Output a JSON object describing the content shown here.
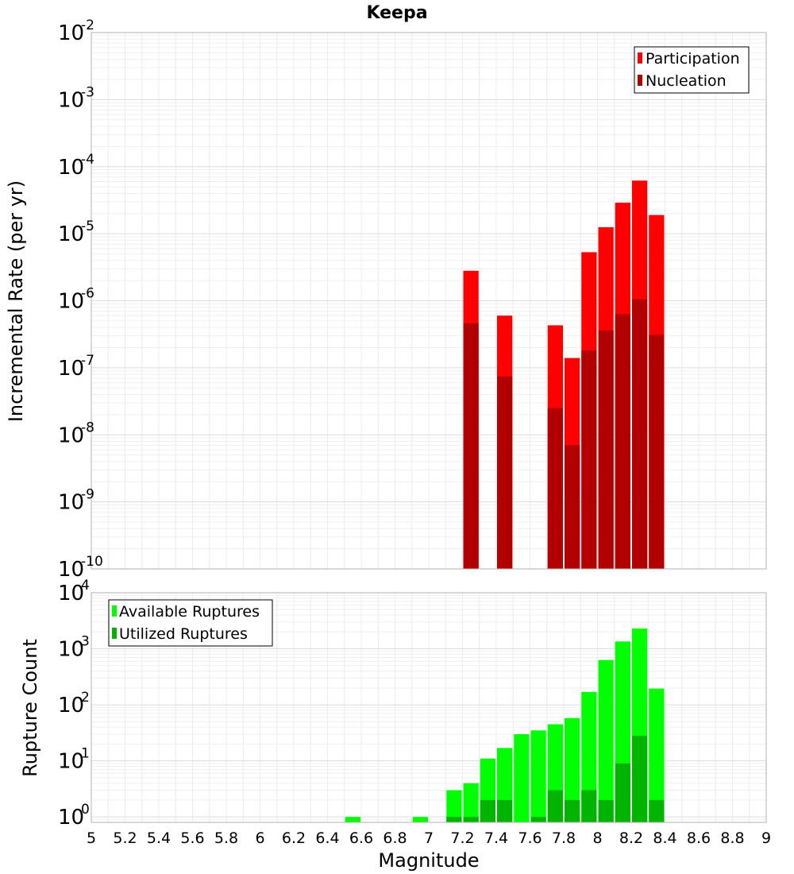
{
  "chart_data": [
    {
      "type": "bar",
      "title": "Keepa",
      "ylabel": "Incremental Rate (per yr)",
      "xlabel": "",
      "y_scale": "log",
      "ylim": [
        1e-10,
        0.01
      ],
      "xlim": [
        5,
        9
      ],
      "grid": true,
      "legend_position": "top-right",
      "ytick_labels": [
        {
          "base": "10",
          "exp": "-10"
        },
        {
          "base": "10",
          "exp": "-9"
        },
        {
          "base": "10",
          "exp": "-8"
        },
        {
          "base": "10",
          "exp": "-7"
        },
        {
          "base": "10",
          "exp": "-6"
        },
        {
          "base": "10",
          "exp": "-5"
        },
        {
          "base": "10",
          "exp": "-4"
        },
        {
          "base": "10",
          "exp": "-3"
        },
        {
          "base": "10",
          "exp": "-2"
        }
      ],
      "series": [
        {
          "name": "Participation",
          "color": "#ff0000",
          "x": [
            7.25,
            7.45,
            7.75,
            7.85,
            7.95,
            8.05,
            8.15,
            8.25,
            8.35
          ],
          "values": [
            2.8e-06,
            6e-07,
            4.3e-07,
            1.4e-07,
            5.3e-06,
            1.25e-05,
            2.9e-05,
            6.2e-05,
            1.9e-05
          ]
        },
        {
          "name": "Nucleation",
          "color": "#b20000",
          "x": [
            7.25,
            7.45,
            7.75,
            7.85,
            7.95,
            8.05,
            8.15,
            8.25,
            8.35
          ],
          "values": [
            4.6e-07,
            7.4e-08,
            2.5e-08,
            7e-09,
            1.8e-07,
            3.6e-07,
            6.3e-07,
            1.05e-06,
            3.1e-07
          ]
        }
      ]
    },
    {
      "type": "bar",
      "title": "",
      "ylabel": "Rupture Count",
      "xlabel": "Magnitude",
      "y_scale": "log",
      "ylim": [
        0.8,
        10000
      ],
      "xlim": [
        5,
        9
      ],
      "grid": true,
      "legend_position": "top-left",
      "ytick_labels": [
        {
          "base": "10",
          "exp": "0"
        },
        {
          "base": "10",
          "exp": "1"
        },
        {
          "base": "10",
          "exp": "2"
        },
        {
          "base": "10",
          "exp": "3"
        },
        {
          "base": "10",
          "exp": "4"
        }
      ],
      "xtick_labels": [
        "5",
        "5.2",
        "5.4",
        "5.6",
        "5.8",
        "6",
        "6.2",
        "6.4",
        "6.6",
        "6.8",
        "7",
        "7.2",
        "7.4",
        "7.6",
        "7.8",
        "8",
        "8.2",
        "8.4",
        "8.6",
        "8.8",
        "9"
      ],
      "series": [
        {
          "name": "Available Ruptures",
          "color": "#00ff00",
          "x": [
            6.55,
            6.95,
            7.15,
            7.25,
            7.35,
            7.45,
            7.55,
            7.65,
            7.75,
            7.85,
            7.95,
            8.05,
            8.15,
            8.25,
            8.35
          ],
          "values": [
            1,
            1,
            3,
            4,
            11,
            17,
            30,
            35,
            45,
            58,
            170,
            630,
            1350,
            2300,
            195
          ]
        },
        {
          "name": "Utilized Ruptures",
          "color": "#00b400",
          "x": [
            7.15,
            7.25,
            7.35,
            7.45,
            7.65,
            7.75,
            7.85,
            7.95,
            8.05,
            8.15,
            8.25,
            8.35
          ],
          "values": [
            1,
            1,
            2,
            2,
            1,
            3,
            2,
            3,
            2,
            9,
            28,
            2
          ]
        }
      ]
    }
  ]
}
